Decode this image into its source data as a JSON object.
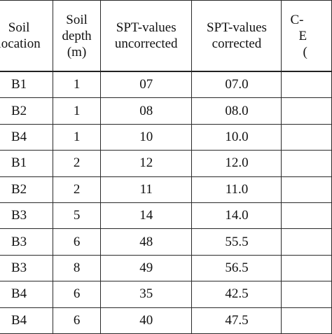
{
  "table": {
    "headers": [
      [
        "Soil",
        "location"
      ],
      [
        "Soil",
        "depth",
        "(m)"
      ],
      [
        "SPT-values",
        "uncorrected"
      ],
      [
        "SPT-values",
        "corrected"
      ],
      [
        "C-",
        "E",
        "("
      ]
    ],
    "rows": [
      [
        "B1",
        "1",
        "07",
        "07.0",
        ""
      ],
      [
        "B2",
        "1",
        "08",
        "08.0",
        ""
      ],
      [
        "B4",
        "1",
        "10",
        "10.0",
        ""
      ],
      [
        "B1",
        "2",
        "12",
        "12.0",
        ""
      ],
      [
        "B2",
        "2",
        "11",
        "11.0",
        ""
      ],
      [
        "B3",
        "5",
        "14",
        "14.0",
        ""
      ],
      [
        "B3",
        "6",
        "48",
        "55.5",
        ""
      ],
      [
        "B3",
        "8",
        "49",
        "56.5",
        ""
      ],
      [
        "B4",
        "6",
        "35",
        "42.5",
        ""
      ],
      [
        "B4",
        "6",
        "40",
        "47.5",
        ""
      ]
    ]
  }
}
